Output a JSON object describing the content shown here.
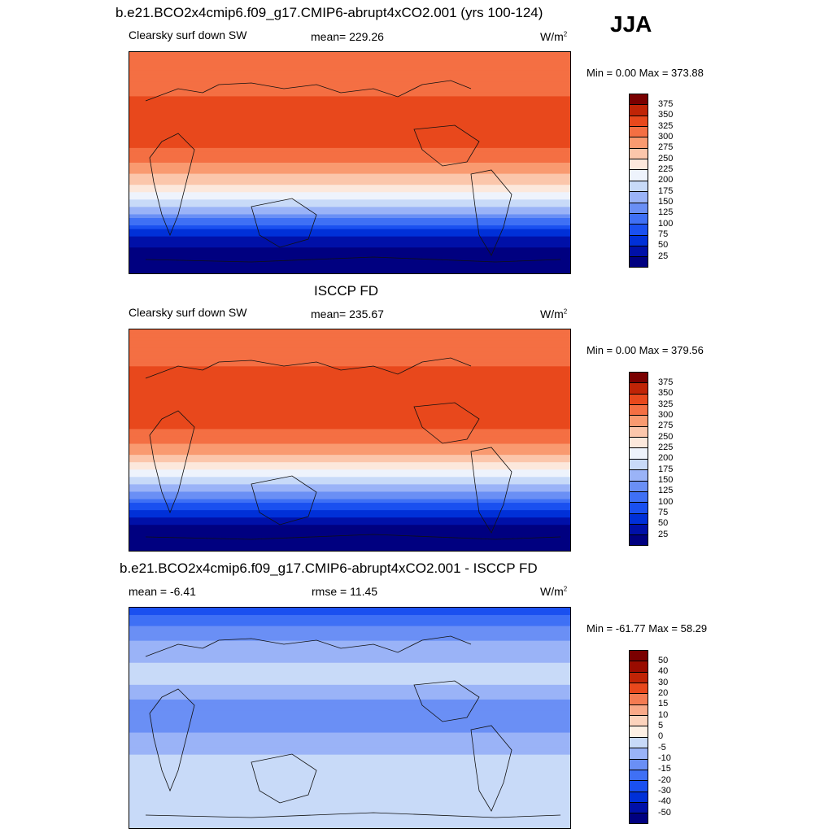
{
  "season": "JJA",
  "panels": [
    {
      "id": "model",
      "title": "b.e21.BCO2x4cmip6.f09_g17.CMIP6-abrupt4xCO2.001 (yrs 100-124)",
      "left_label": "Clearsky surf down SW",
      "center_label": "mean= 229.26",
      "units": "W/m",
      "units_sup": "2",
      "minmax": "Min =   0.00 Max = 373.88"
    },
    {
      "id": "obs",
      "title": "ISCCP FD",
      "left_label": "Clearsky surf down SW",
      "center_label": "mean= 235.67",
      "units": "W/m",
      "units_sup": "2",
      "minmax": "Min =   0.00 Max = 379.56"
    },
    {
      "id": "diff",
      "title": "b.e21.BCO2x4cmip6.f09_g17.CMIP6-abrupt4xCO2.001 - ISCCP FD",
      "left_label": "mean =  -6.41",
      "center_label": "rmse =  11.45",
      "units": "W/m",
      "units_sup": "2",
      "minmax": "Min = -61.77 Max =  58.29"
    }
  ],
  "chart_data": [
    {
      "type": "heatmap",
      "title": "b.e21.BCO2x4cmip6.f09_g17.CMIP6-abrupt4xCO2.001 (yrs 100-124)",
      "variable": "Clearsky surf down SW",
      "units": "W/m2",
      "mean": 229.26,
      "min": 0.0,
      "max": 373.88,
      "levels": [
        25,
        50,
        75,
        100,
        125,
        150,
        175,
        200,
        225,
        250,
        275,
        300,
        325,
        350,
        375
      ],
      "colors": [
        "#000080",
        "#0010a8",
        "#0030d8",
        "#1a50f0",
        "#3f70f5",
        "#6a8ff5",
        "#9ab3f7",
        "#c8daf8",
        "#eef3fc",
        "#fce8dc",
        "#fbc6ab",
        "#f99a70",
        "#f46f43",
        "#e8481c",
        "#c02406",
        "#7a0000"
      ],
      "zonal_profile": {
        "lat": [
          90,
          75,
          60,
          45,
          30,
          15,
          0,
          -15,
          -30,
          -45,
          -60,
          -75,
          -90
        ],
        "value": [
          300,
          305,
          320,
          335,
          345,
          330,
          300,
          260,
          200,
          130,
          50,
          5,
          0
        ]
      }
    },
    {
      "type": "heatmap",
      "title": "ISCCP FD",
      "variable": "Clearsky surf down SW",
      "units": "W/m2",
      "mean": 235.67,
      "min": 0.0,
      "max": 379.56,
      "levels": [
        25,
        50,
        75,
        100,
        125,
        150,
        175,
        200,
        225,
        250,
        275,
        300,
        325,
        350,
        375
      ],
      "colors": [
        "#000080",
        "#0010a8",
        "#0030d8",
        "#1a50f0",
        "#3f70f5",
        "#6a8ff5",
        "#9ab3f7",
        "#c8daf8",
        "#eef3fc",
        "#fce8dc",
        "#fbc6ab",
        "#f99a70",
        "#f46f43",
        "#e8481c",
        "#c02406",
        "#7a0000"
      ],
      "zonal_profile": {
        "lat": [
          90,
          75,
          60,
          45,
          30,
          15,
          0,
          -15,
          -30,
          -45,
          -60,
          -75,
          -90
        ],
        "value": [
          305,
          310,
          325,
          340,
          350,
          335,
          305,
          265,
          205,
          135,
          55,
          5,
          0
        ]
      }
    },
    {
      "type": "heatmap",
      "title": "b.e21.BCO2x4cmip6.f09_g17.CMIP6-abrupt4xCO2.001 - ISCCP FD",
      "variable": "difference",
      "units": "W/m2",
      "mean": -6.41,
      "rmse": 11.45,
      "min": -61.77,
      "max": 58.29,
      "levels": [
        -50,
        -40,
        -30,
        -20,
        -15,
        -10,
        -5,
        0,
        5,
        10,
        15,
        20,
        30,
        40,
        50
      ],
      "colors": [
        "#000080",
        "#0010a8",
        "#0030d8",
        "#1a50f0",
        "#3f70f5",
        "#6a8ff5",
        "#9ab3f7",
        "#c8daf8",
        "#fdf0e4",
        "#fcd3bc",
        "#f9a988",
        "#f47b52",
        "#e8481c",
        "#c02406",
        "#9a0c00",
        "#7a0000"
      ],
      "zonal_profile": {
        "lat": [
          90,
          75,
          60,
          45,
          30,
          15,
          0,
          -15,
          -30,
          -45,
          -60,
          -75,
          -90
        ],
        "value": [
          -25,
          -15,
          -8,
          -5,
          -3,
          -10,
          -15,
          -8,
          -5,
          -5,
          -3,
          -2,
          -2
        ]
      }
    }
  ]
}
